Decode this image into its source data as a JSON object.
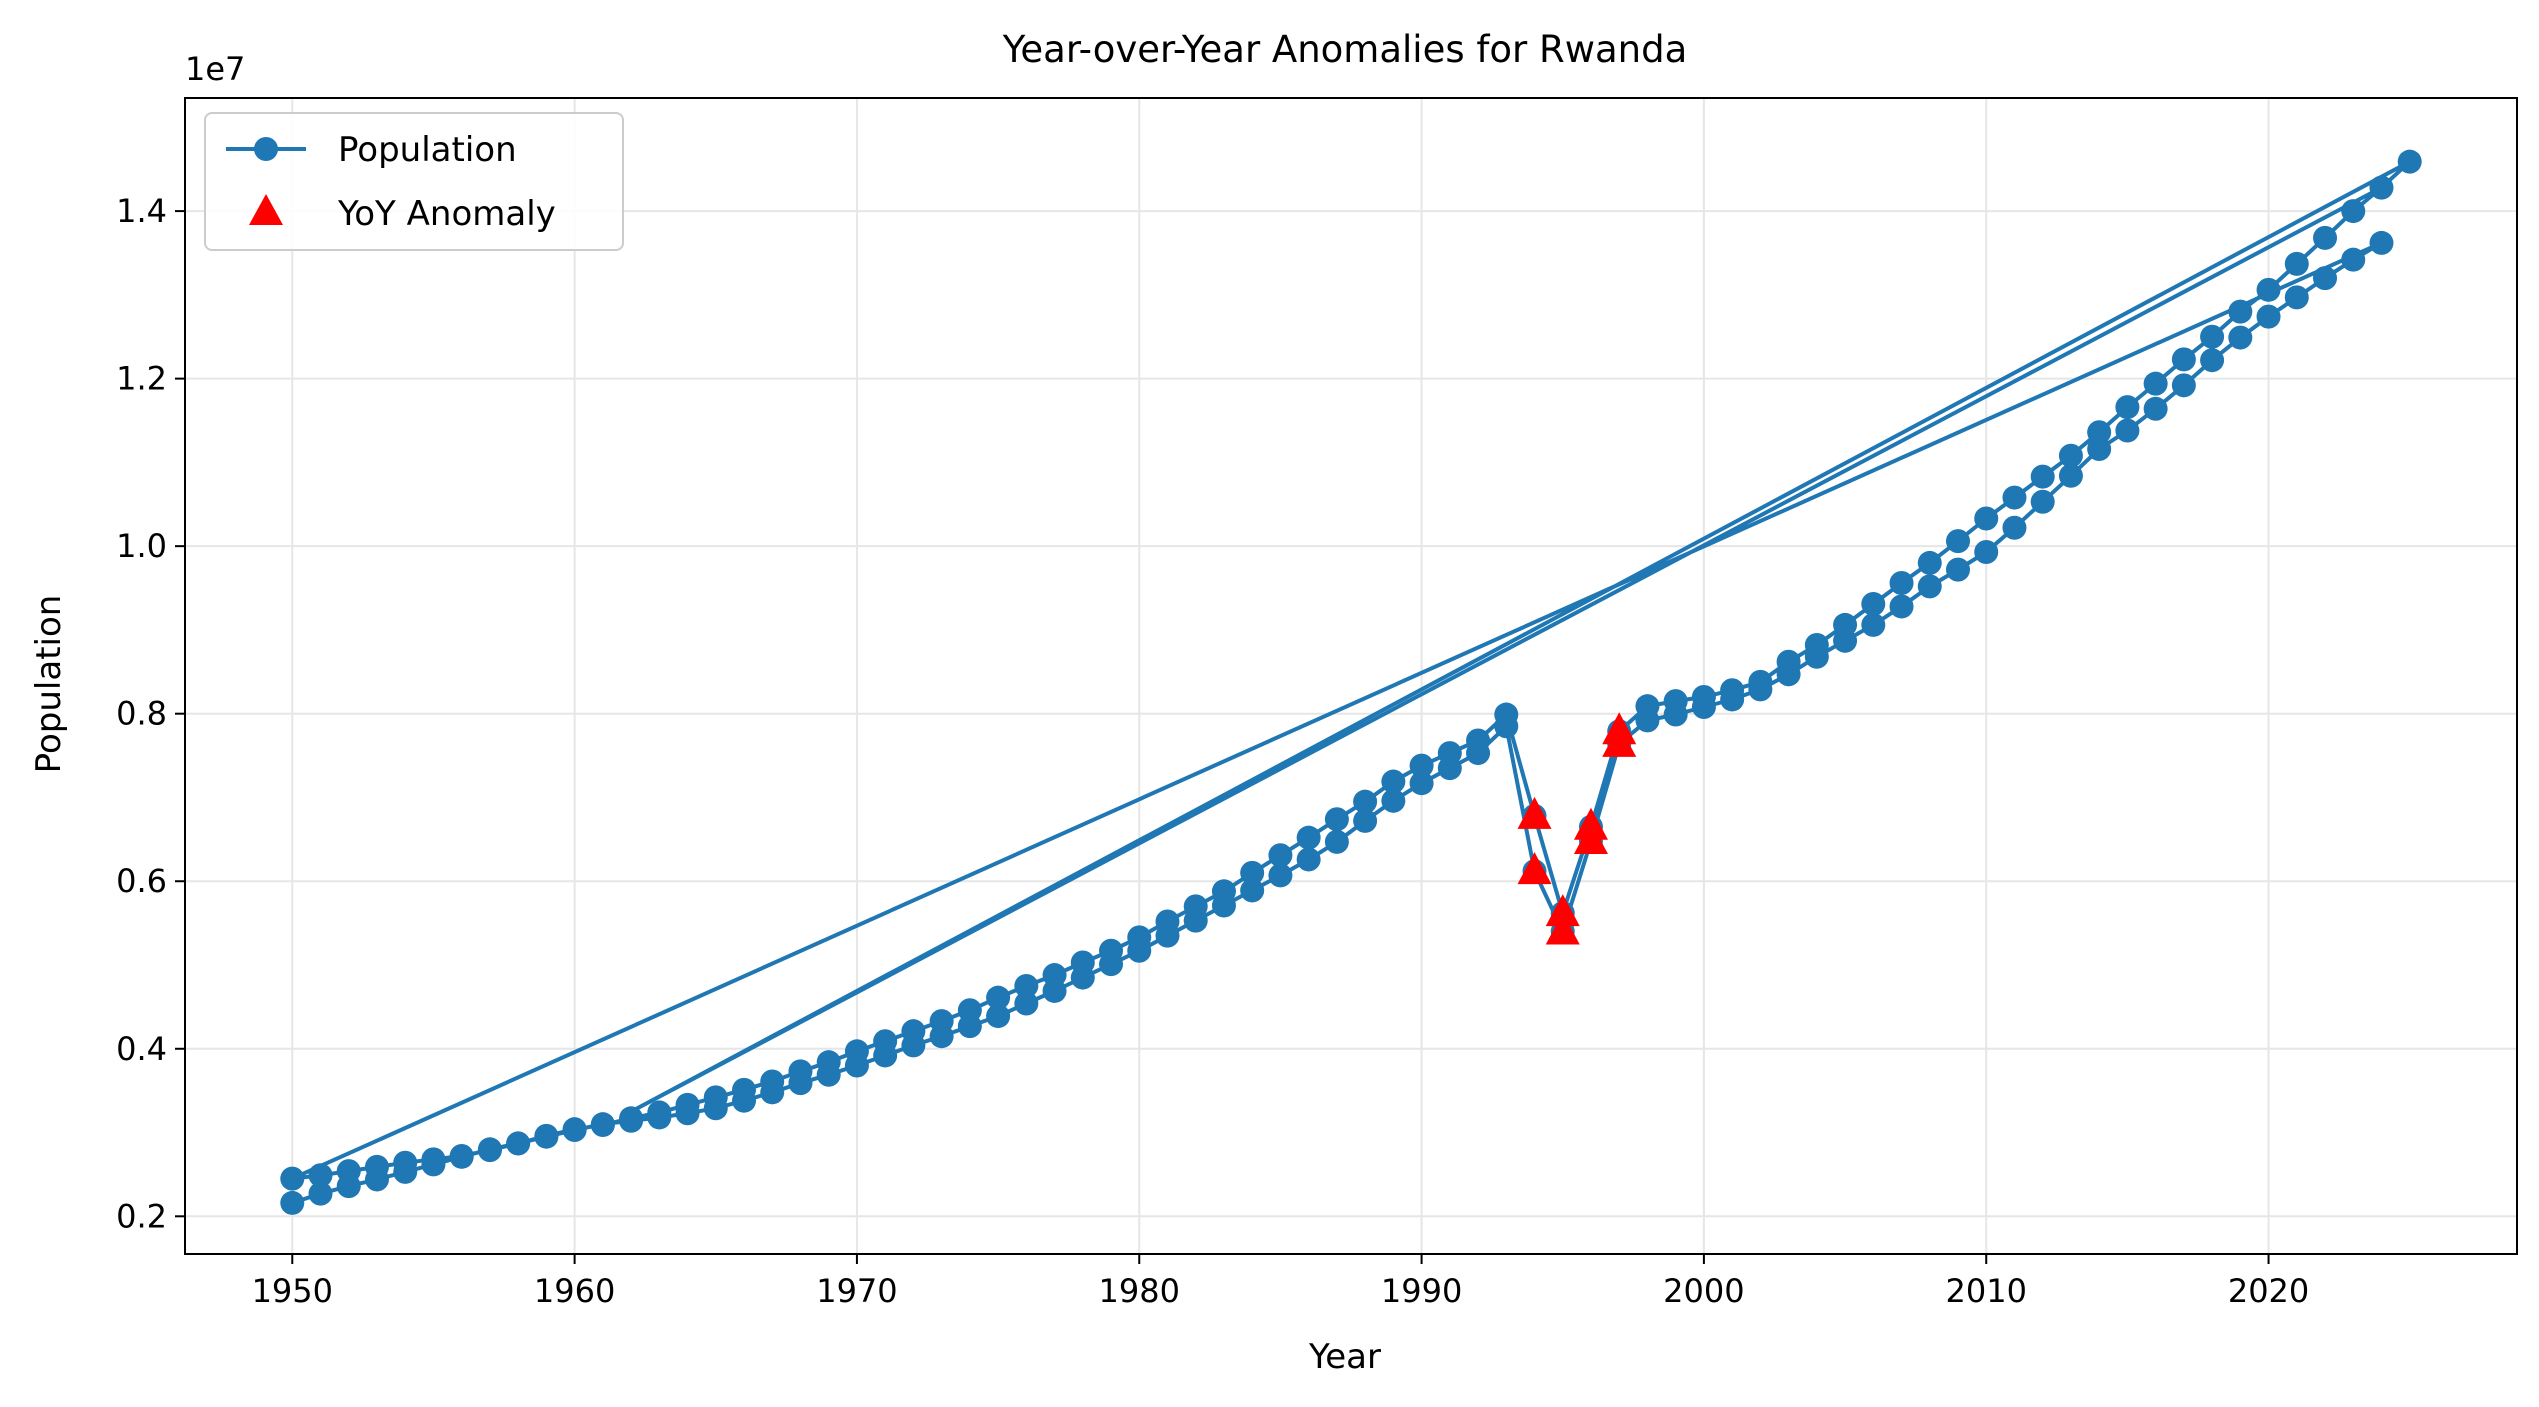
{
  "chart_data": {
    "type": "line",
    "title": "Year-over-Year Anomalies for Rwanda",
    "xlabel": "Year",
    "ylabel": "Population",
    "offset_label": "1e7",
    "xlim": [
      1946.2,
      2028.8
    ],
    "ylim": [
      1550000,
      15350000
    ],
    "xticks": [
      1950,
      1960,
      1970,
      1980,
      1990,
      2000,
      2010,
      2020
    ],
    "xtick_labels": [
      "1950",
      "1960",
      "1970",
      "1980",
      "1990",
      "2000",
      "2010",
      "2020"
    ],
    "yticks": [
      2000000,
      4000000,
      6000000,
      8000000,
      10000000,
      12000000,
      14000000
    ],
    "ytick_labels": [
      "0.2",
      "0.4",
      "0.6",
      "0.8",
      "1.0",
      "1.2",
      "1.4"
    ],
    "grid": true,
    "legend_position": "top-left",
    "colors": {
      "line": "#1f77b4",
      "anomaly": "#ff0000",
      "grid": "#e6e6e6"
    },
    "series": [
      {
        "name": "Population",
        "style": "line-marker",
        "segments": [
          {
            "x": [
              1950,
              1951,
              1952,
              1953,
              1954,
              1955,
              1956,
              1957,
              1958,
              1959,
              1960,
              1961,
              1962,
              1963,
              1964,
              1965,
              1966,
              1967,
              1968,
              1969,
              1970,
              1971,
              1972,
              1973,
              1974,
              1975,
              1976,
              1977,
              1978,
              1979,
              1980,
              1981,
              1982,
              1983,
              1984,
              1985,
              1986,
              1987,
              1988,
              1989,
              1990,
              1991,
              1992,
              1993,
              1994,
              1995,
              1996,
              1997,
              1998,
              1999,
              2000,
              2001,
              2002,
              2003,
              2004,
              2005,
              2006,
              2007,
              2008,
              2009,
              2010,
              2011,
              2012,
              2013,
              2014,
              2015,
              2016,
              2017,
              2018,
              2019,
              2020,
              2021,
              2022,
              2023,
              2024
            ],
            "y": [
              2160000,
              2270000,
              2360000,
              2440000,
              2530000,
              2620000,
              2710000,
              2800000,
              2870000,
              2950000,
              3030000,
              3100000,
              3140000,
              3180000,
              3230000,
              3290000,
              3380000,
              3480000,
              3590000,
              3690000,
              3800000,
              3920000,
              4040000,
              4150000,
              4270000,
              4390000,
              4540000,
              4690000,
              4850000,
              5010000,
              5170000,
              5350000,
              5530000,
              5710000,
              5890000,
              6070000,
              6260000,
              6470000,
              6720000,
              6960000,
              7170000,
              7350000,
              7530000,
              7850000,
              6120000,
              5400000,
              6480000,
              7640000,
              7920000,
              7990000,
              8080000,
              8170000,
              8290000,
              8470000,
              8680000,
              8870000,
              9060000,
              9280000,
              9520000,
              9720000,
              9930000,
              10220000,
              10530000,
              10840000,
              11160000,
              11380000,
              11640000,
              11920000,
              12220000,
              12490000,
              12740000,
              12970000,
              13200000,
              13420000,
              13620000
            ]
          },
          {
            "x": [
              1950,
              1951,
              1952,
              1953,
              1954,
              1955,
              1956,
              1957,
              1958,
              1959,
              1960,
              1961,
              1962,
              1963,
              1964,
              1965,
              1966,
              1967,
              1968,
              1969,
              1970,
              1971,
              1972,
              1973,
              1974,
              1975,
              1976,
              1977,
              1978,
              1979,
              1980,
              1981,
              1982,
              1983,
              1984,
              1985,
              1986,
              1987,
              1988,
              1989,
              1990,
              1991,
              1992,
              1993,
              1994,
              1995,
              1996,
              1997,
              1998,
              1999,
              2000,
              2001,
              2002,
              2003,
              2004,
              2005,
              2006,
              2007,
              2008,
              2009,
              2010,
              2011,
              2012,
              2013,
              2014,
              2015,
              2016,
              2017,
              2018,
              2019,
              2020,
              2021,
              2022,
              2023,
              2024,
              2025
            ],
            "y": [
              2450000,
              2490000,
              2540000,
              2590000,
              2640000,
              2680000,
              2720000,
              2790000,
              2870000,
              2960000,
              3040000,
              3090000,
              3170000,
              3240000,
              3330000,
              3420000,
              3510000,
              3610000,
              3730000,
              3840000,
              3970000,
              4090000,
              4210000,
              4330000,
              4460000,
              4610000,
              4750000,
              4880000,
              5030000,
              5170000,
              5330000,
              5520000,
              5700000,
              5880000,
              6100000,
              6310000,
              6520000,
              6740000,
              6950000,
              7190000,
              7380000,
              7530000,
              7680000,
              7990000,
              6780000,
              5620000,
              6650000,
              7790000,
              8090000,
              8150000,
              8200000,
              8280000,
              8380000,
              8620000,
              8820000,
              9060000,
              9310000,
              9560000,
              9800000,
              10060000,
              10330000,
              10580000,
              10830000,
              11080000,
              11360000,
              11660000,
              11940000,
              12230000,
              12500000,
              12800000,
              13060000,
              13370000,
              13680000,
              14000000,
              14280000,
              14590000
            ]
          },
          {
            "x": [
              1962,
              2024
            ],
            "y": [
              3250000,
              14280000
            ]
          }
        ]
      },
      {
        "name": "YoY Anomaly",
        "style": "triangle-marker",
        "x": [
          1994,
          1994,
          1995,
          1995,
          1996,
          1996,
          1997,
          1997
        ],
        "y": [
          6120000,
          6780000,
          5400000,
          5620000,
          6480000,
          6650000,
          7640000,
          7790000
        ]
      }
    ]
  }
}
